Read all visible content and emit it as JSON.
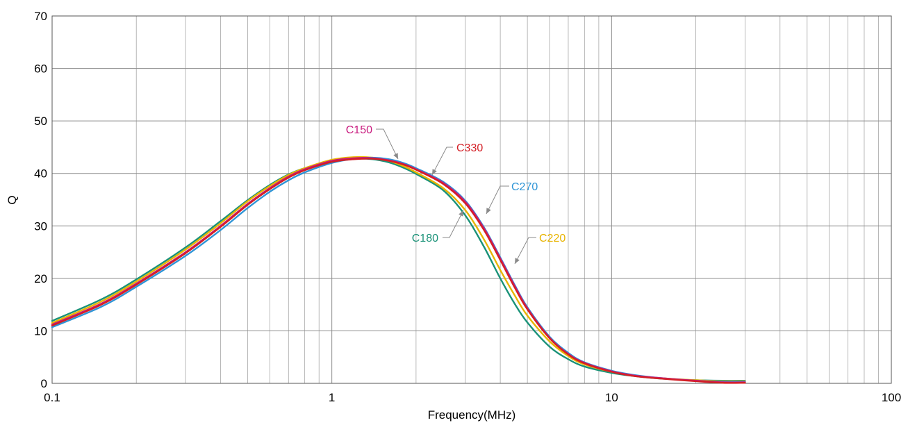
{
  "chart_data": {
    "type": "line",
    "xscale": "log",
    "xlim": [
      0.1,
      100
    ],
    "ylim": [
      0,
      70
    ],
    "xlabel": "Frequency(MHz)",
    "ylabel": "Q",
    "grid": true,
    "xticks": [
      {
        "value": 0.1,
        "label": "0.1"
      },
      {
        "value": 1,
        "label": "1"
      },
      {
        "value": 10,
        "label": "10"
      },
      {
        "value": 100,
        "label": "100"
      }
    ],
    "yticks": [
      {
        "value": 0,
        "label": "0"
      },
      {
        "value": 10,
        "label": "10"
      },
      {
        "value": 20,
        "label": "20"
      },
      {
        "value": 30,
        "label": "30"
      },
      {
        "value": 40,
        "label": "40"
      },
      {
        "value": 50,
        "label": "50"
      },
      {
        "value": 60,
        "label": "60"
      },
      {
        "value": 70,
        "label": "70"
      }
    ],
    "x": [
      0.1,
      0.15,
      0.2,
      0.3,
      0.4,
      0.5,
      0.6,
      0.7,
      0.8,
      1.0,
      1.2,
      1.4,
      1.6,
      1.8,
      2.0,
      2.5,
      3.0,
      3.5,
      4.0,
      4.5,
      5.0,
      6.0,
      7.0,
      8.0,
      10.0,
      12.0,
      15.0,
      20.0,
      25.0,
      30.0
    ],
    "series": [
      {
        "name": "C180",
        "color": "#1a9278",
        "values": [
          11.9,
          16.0,
          19.8,
          25.9,
          30.9,
          34.9,
          37.8,
          39.8,
          41.0,
          42.3,
          42.8,
          42.7,
          42.1,
          41.1,
          39.9,
          36.8,
          32.0,
          26.0,
          20.0,
          15.2,
          11.6,
          7.0,
          4.6,
          3.2,
          2.0,
          1.4,
          0.9,
          0.6,
          0.5,
          0.5
        ]
      },
      {
        "name": "C220",
        "color": "#e8b400",
        "values": [
          11.5,
          15.6,
          19.4,
          25.5,
          30.5,
          34.7,
          37.6,
          39.7,
          41.0,
          42.6,
          43.1,
          43.0,
          42.4,
          41.4,
          40.2,
          37.2,
          33.0,
          27.4,
          21.6,
          16.8,
          12.9,
          8.0,
          5.2,
          3.6,
          2.2,
          1.5,
          1.0,
          0.6,
          0.4,
          0.4
        ]
      },
      {
        "name": "C270",
        "color": "#2e94d6",
        "values": [
          10.7,
          14.6,
          18.4,
          24.3,
          29.2,
          33.4,
          36.5,
          38.7,
          40.2,
          42.0,
          42.8,
          43.0,
          42.7,
          42.0,
          41.0,
          38.4,
          34.8,
          29.7,
          24.0,
          18.8,
          14.5,
          8.9,
          5.8,
          4.0,
          2.4,
          1.6,
          1.0,
          0.5,
          0.3,
          0.3
        ]
      },
      {
        "name": "C150",
        "color": "#c8187d",
        "values": [
          11.2,
          15.2,
          19.0,
          25.0,
          30.0,
          34.2,
          37.2,
          39.4,
          40.8,
          42.4,
          42.9,
          42.9,
          42.5,
          41.8,
          40.8,
          38.2,
          34.6,
          29.5,
          23.8,
          18.6,
          14.3,
          8.7,
          5.6,
          3.9,
          2.3,
          1.5,
          1.0,
          0.5,
          0.2,
          0.2
        ]
      },
      {
        "name": "C330",
        "color": "#d41f26",
        "values": [
          11.0,
          15.0,
          18.8,
          24.8,
          29.8,
          34.0,
          37.0,
          39.2,
          40.6,
          42.2,
          42.7,
          42.8,
          42.4,
          41.7,
          40.7,
          38.0,
          34.3,
          29.2,
          23.5,
          18.3,
          14.1,
          8.6,
          5.5,
          3.8,
          2.2,
          1.4,
          0.9,
          0.4,
          0.1,
          0.1
        ]
      }
    ],
    "annotations": [
      {
        "text": "C150",
        "color": "#c8187d"
      },
      {
        "text": "C330",
        "color": "#d41f26"
      },
      {
        "text": "C270",
        "color": "#2e94d6"
      },
      {
        "text": "C180",
        "color": "#1a9278"
      },
      {
        "text": "C220",
        "color": "#e8b400"
      }
    ]
  }
}
